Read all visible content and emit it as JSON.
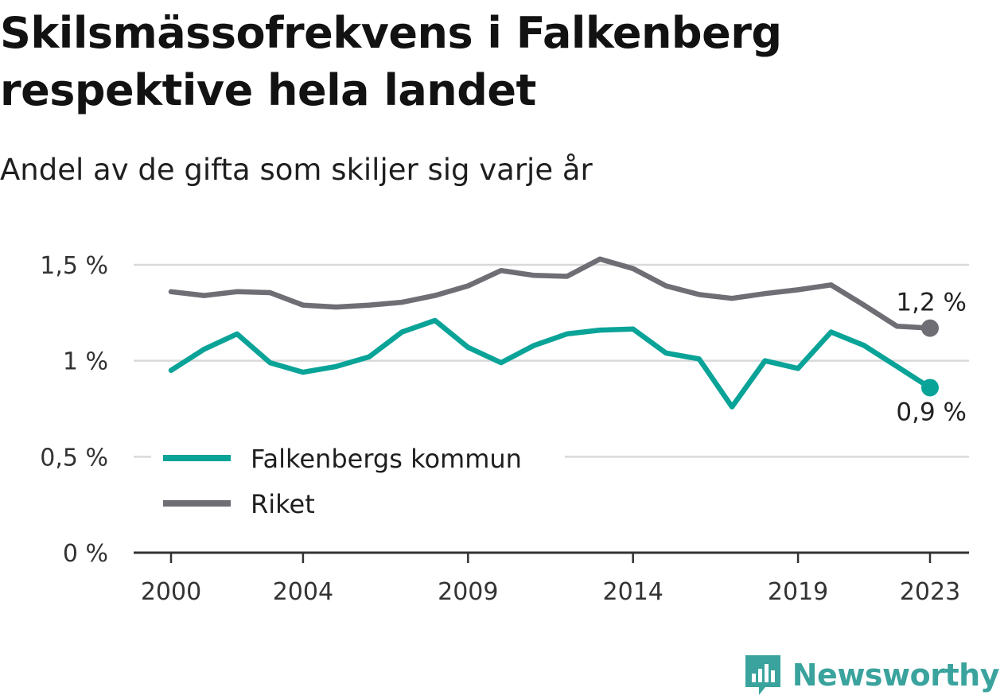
{
  "header": {
    "title": "Skilsmässofrekvens i Falkenberg respektive hela landet",
    "subtitle": "Andel av de gifta som skiljer sig varje år"
  },
  "brand": {
    "name": "Newsworthy",
    "icon": "newsworthy-logo-icon",
    "color": "#3aa39d"
  },
  "colors": {
    "falkenberg": "#0aa398",
    "riket": "#6f6e75",
    "grid": "#d9d9d9",
    "axis": "#333333"
  },
  "chart_data": {
    "type": "line",
    "title": "Skilsmässofrekvens i Falkenberg respektive hela landet",
    "subtitle": "Andel av de gifta som skiljer sig varje år",
    "xlabel": "",
    "ylabel": "",
    "x": [
      2000,
      2001,
      2002,
      2003,
      2004,
      2005,
      2006,
      2007,
      2008,
      2009,
      2010,
      2011,
      2012,
      2013,
      2014,
      2015,
      2016,
      2017,
      2018,
      2019,
      2020,
      2021,
      2022,
      2023
    ],
    "x_ticks": [
      2000,
      2004,
      2009,
      2014,
      2019,
      2023
    ],
    "x_tick_labels": [
      "2000",
      "2004",
      "2009",
      "2014",
      "2019",
      "2023"
    ],
    "ylim": [
      0,
      1.5
    ],
    "y_ticks": [
      0,
      0.5,
      1,
      1.5
    ],
    "y_tick_labels": [
      "0 %",
      "0,5 %",
      "1 %",
      "1,5 %"
    ],
    "grid": true,
    "legend_position": "bottom-left",
    "series": [
      {
        "name": "Falkenbergs kommun",
        "color": "#0aa398",
        "values": [
          0.95,
          1.06,
          1.14,
          0.99,
          0.94,
          0.97,
          1.02,
          1.15,
          1.21,
          1.07,
          0.99,
          1.08,
          1.14,
          1.16,
          1.165,
          1.04,
          1.01,
          0.76,
          1.0,
          0.96,
          1.15,
          1.08,
          0.97,
          0.86
        ],
        "end_label": "0,9 %"
      },
      {
        "name": "Riket",
        "color": "#6f6e75",
        "values": [
          1.36,
          1.34,
          1.36,
          1.355,
          1.29,
          1.28,
          1.29,
          1.305,
          1.34,
          1.39,
          1.47,
          1.445,
          1.44,
          1.53,
          1.48,
          1.39,
          1.345,
          1.325,
          1.35,
          1.37,
          1.395,
          1.29,
          1.18,
          1.17
        ],
        "end_label": "1,2 %"
      }
    ]
  }
}
